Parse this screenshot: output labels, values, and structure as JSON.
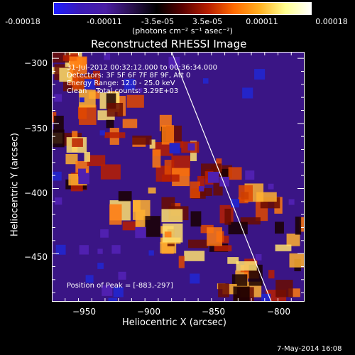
{
  "colorbar": {
    "colors": [
      "#1e1eff",
      "#3a1ab8",
      "#4a1ea4",
      "#2a1050",
      "#000000",
      "#5a0000",
      "#b81e00",
      "#ff6a00",
      "#ffb020",
      "#ffff90",
      "#ffffff"
    ],
    "ticks": [
      "-0.00018",
      "-0.00011",
      "-3.5e-05",
      "3.5e-05",
      "0.00011",
      "0.00018"
    ],
    "units": "(photons cm⁻² s⁻¹ asec⁻²)"
  },
  "chart_data": {
    "type": "heatmap",
    "title": "Reconstructed RHESSI Image",
    "xlabel": "Heliocentric X (arcsec)",
    "ylabel": "Heliocentric Y (arcsec)",
    "xlim": [
      -975,
      -785
    ],
    "ylim": [
      -487,
      -295
    ],
    "x_ticks": [
      -950,
      -900,
      -850,
      -800
    ],
    "y_ticks": [
      -300,
      -350,
      -400,
      -450
    ],
    "x_tick_labels": [
      "−950",
      "−900",
      "−850",
      "−800"
    ],
    "y_tick_labels": [
      "−300",
      "−350",
      "−400",
      "−450"
    ],
    "limb_line": [
      [
        -885,
        -295
      ],
      [
        -810,
        -487
      ]
    ],
    "annotations": [
      "31-Jul-2012 00:32:12.000 to 00:36:34.000",
      "Detectors: 3F 5F 6F 7F 8F 9F, Att 0",
      "Energy Range: 12.0 - 25.0 keV",
      "Clean    Total counts: 3.29E+03"
    ],
    "peak_label": "Position of Peak = [-883,-297]",
    "peak": [
      -883,
      -297
    ]
  },
  "footer": {
    "date": "7-May-2014 16:08"
  }
}
